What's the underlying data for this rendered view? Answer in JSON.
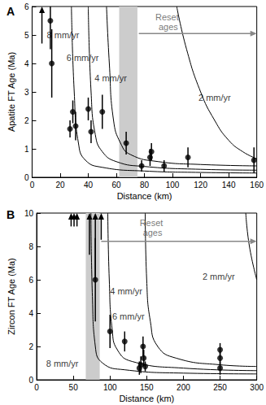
{
  "chart_data": [
    {
      "type": "scatter",
      "title": "A",
      "x_label": "Distance (km)",
      "y_label": "Apatite FT Age (Ma)",
      "xlim": [
        0,
        160
      ],
      "xticks": [
        0,
        20,
        40,
        60,
        80,
        100,
        120,
        140,
        160
      ],
      "ylim": [
        0,
        6
      ],
      "yticks": [
        0,
        1,
        2,
        3,
        4,
        5,
        6
      ],
      "grid": false,
      "color": "#000000",
      "points": {
        "x": [
          13,
          14,
          27,
          29,
          31,
          40,
          42,
          50,
          67,
          78,
          84,
          85,
          94,
          111,
          158
        ],
        "y": [
          5.5,
          4.0,
          1.7,
          2.3,
          1.8,
          2.4,
          1.6,
          2.3,
          1.2,
          0.4,
          0.7,
          0.9,
          0.4,
          0.7,
          0.6
        ],
        "error": [
          1.0,
          1.2,
          0.3,
          0.4,
          0.5,
          0.4,
          0.4,
          0.6,
          0.4,
          0.2,
          0.3,
          0.3,
          0.2,
          0.35,
          0.45
        ]
      },
      "minimum_age_arrows": {
        "x": [
          7
        ],
        "y": [
          4.7
        ]
      },
      "curves": [
        {
          "name": "8 mm/yr",
          "x": [
            28,
            30,
            33,
            38,
            50,
            80,
            120,
            160
          ],
          "y": [
            6,
            3,
            1.2,
            0.6,
            0.35,
            0.22,
            0.17,
            0.15
          ],
          "label_x": 22,
          "label_y": 5.0
        },
        {
          "name": "6 mm/yr",
          "x": [
            40,
            42,
            45,
            50,
            60,
            80,
            120,
            160
          ],
          "y": [
            6,
            3,
            1.5,
            0.9,
            0.55,
            0.38,
            0.28,
            0.25
          ],
          "label_x": 36,
          "label_y": 4.2
        },
        {
          "name": "4 mm/yr",
          "x": [
            53,
            55,
            58,
            63,
            70,
            90,
            120,
            160
          ],
          "y": [
            6,
            4,
            2,
            1.2,
            0.8,
            0.55,
            0.45,
            0.4
          ],
          "label_x": 56,
          "label_y": 3.5
        },
        {
          "name": "2 mm/yr",
          "x": [
            103,
            110,
            120,
            130,
            140,
            150,
            160
          ],
          "y": [
            6,
            4.5,
            3,
            2,
            1.3,
            0.9,
            0.65
          ],
          "label_x": 130,
          "label_y": 2.8
        }
      ],
      "reset_zone": {
        "xmin": 62,
        "xmax": 75,
        "color": "#cccccc"
      },
      "reset_label": {
        "text": "Reset ages",
        "x": 97,
        "y": 5.45
      },
      "reset_arrow": {
        "x_from": 76,
        "x_to": 160,
        "y": 5.05,
        "color": "#888888"
      }
    },
    {
      "type": "scatter",
      "title": "B",
      "x_label": "Distance (km)",
      "y_label": "Zircon FT Age (Ma)",
      "xlim": [
        0,
        300
      ],
      "xticks": [
        0,
        50,
        100,
        150,
        200,
        250,
        300
      ],
      "ylim": [
        0,
        10
      ],
      "yticks": [
        0,
        2,
        4,
        6,
        8,
        10
      ],
      "grid": false,
      "color": "#000000",
      "points": {
        "x": [
          80,
          100,
          120,
          140,
          142,
          145,
          146,
          148,
          250,
          250,
          250
        ],
        "y": [
          6.0,
          2.9,
          2.3,
          0.7,
          0.9,
          2.0,
          1.3,
          0.8,
          1.8,
          1.3,
          0.7
        ],
        "error": [
          2.5,
          1.0,
          0.6,
          0.4,
          0.5,
          0.6,
          0.5,
          0.3,
          0.4,
          0.4,
          0.4
        ]
      },
      "minimum_age_arrows": {
        "x": [
          47,
          51,
          55,
          72,
          80,
          88
        ],
        "y": [
          9.2,
          9.2,
          9.2,
          7.5,
          6.0,
          8.4
        ]
      },
      "curves": [
        {
          "name": "8 mm/yr",
          "x": [
            74,
            76,
            80,
            90,
            120,
            200,
            300
          ],
          "y": [
            10,
            5,
            2,
            1.0,
            0.6,
            0.4,
            0.35
          ],
          "label_x": 35,
          "label_y": 1.0
        },
        {
          "name": "6 mm/yr",
          "x": [
            97,
            99,
            103,
            110,
            130,
            200,
            300
          ],
          "y": [
            10,
            6,
            3,
            1.8,
            1.1,
            0.7,
            0.55
          ],
          "label_x": 125,
          "label_y": 3.8
        },
        {
          "name": "4 mm/yr",
          "x": [
            148,
            150,
            155,
            165,
            190,
            250,
            300
          ],
          "y": [
            10,
            6,
            3.5,
            2,
            1.3,
            0.9,
            0.8
          ],
          "label_x": 122,
          "label_y": 5.3
        },
        {
          "name": "2 mm/yr",
          "x": [
            285,
            290,
            300
          ],
          "y": [
            10,
            8,
            6
          ],
          "label_x": 248,
          "label_y": 6.2
        }
      ],
      "reset_zone": {
        "xmin": 67,
        "xmax": 86,
        "color": "#cccccc"
      },
      "reset_label": {
        "text": "Reset ages",
        "x": 158,
        "y": 9.1
      },
      "reset_arrow": {
        "x_from": 88,
        "x_to": 300,
        "y": 8.3,
        "color": "#888888"
      }
    }
  ]
}
